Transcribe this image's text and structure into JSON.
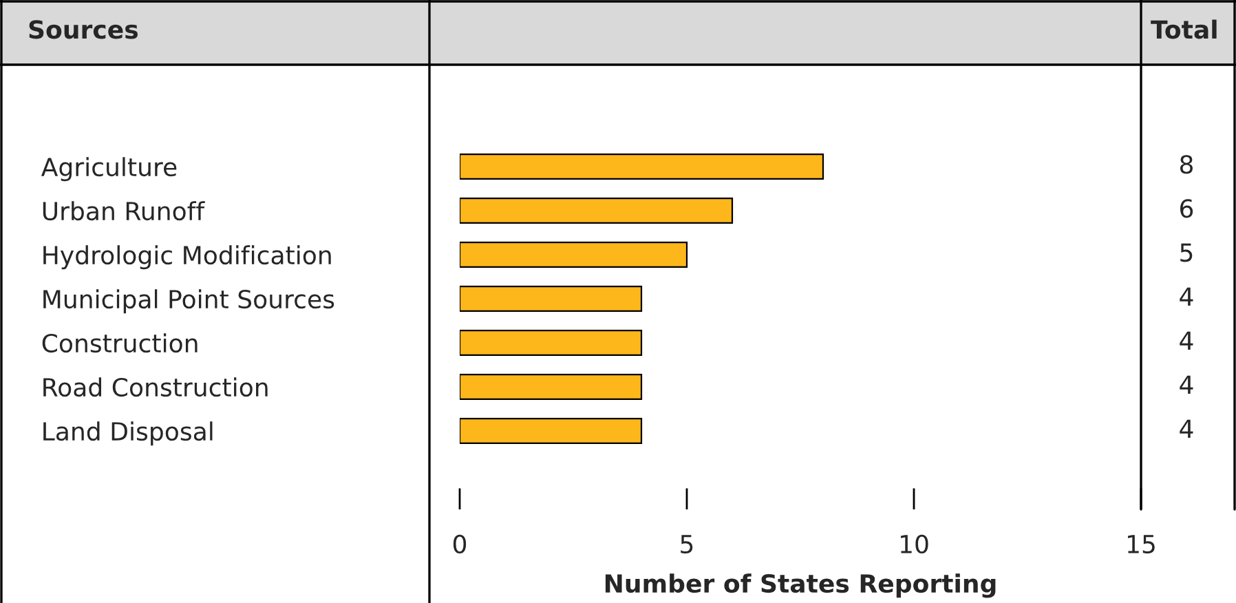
{
  "chart_data": {
    "type": "bar",
    "orientation": "horizontal",
    "categories": [
      "Agriculture",
      "Urban Runoff",
      "Hydrologic Modification",
      "Municipal Point Sources",
      "Construction",
      "Road Construction",
      "Land Disposal"
    ],
    "values": [
      8,
      6,
      5,
      4,
      4,
      4,
      4
    ],
    "color": "#fdb71a",
    "xlim": [
      0,
      15
    ],
    "xticks": [
      0,
      5,
      10,
      15
    ],
    "xlabel": "Number of States Reporting",
    "data_labels": true,
    "annotations": [
      "Sources",
      "Total"
    ],
    "grid": false,
    "legend": false
  }
}
